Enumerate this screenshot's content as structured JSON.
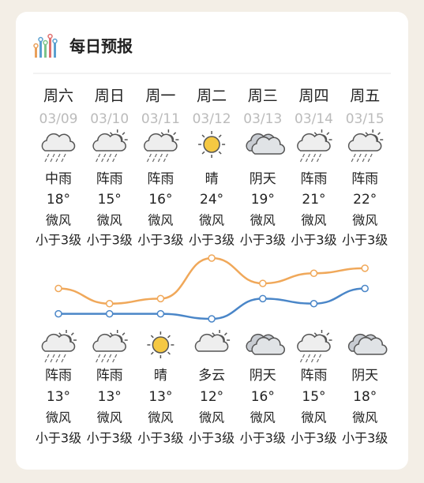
{
  "header": {
    "title": "每日预报"
  },
  "days": [
    {
      "weekday": "周六",
      "date": "03/09",
      "day_weather": "中雨",
      "day_wind": "微风",
      "day_wind_level": "小于3级",
      "night_weather": "阵雨",
      "night_wind": "微风",
      "night_wind_level": "小于3级"
    },
    {
      "weekday": "周日",
      "date": "03/10",
      "day_weather": "阵雨",
      "day_wind": "微风",
      "day_wind_level": "小于3级",
      "night_weather": "阵雨",
      "night_wind": "微风",
      "night_wind_level": "小于3级"
    },
    {
      "weekday": "周一",
      "date": "03/11",
      "day_weather": "阵雨",
      "day_wind": "微风",
      "day_wind_level": "小于3级",
      "night_weather": "晴",
      "night_wind": "微风",
      "night_wind_level": "小于3级"
    },
    {
      "weekday": "周二",
      "date": "03/12",
      "day_weather": "晴",
      "day_wind": "微风",
      "day_wind_level": "小于3级",
      "night_weather": "多云",
      "night_wind": "微风",
      "night_wind_level": "小于3级"
    },
    {
      "weekday": "周三",
      "date": "03/13",
      "day_weather": "阴天",
      "day_wind": "微风",
      "day_wind_level": "小于3级",
      "night_weather": "阴天",
      "night_wind": "微风",
      "night_wind_level": "小于3级"
    },
    {
      "weekday": "周四",
      "date": "03/14",
      "day_weather": "阵雨",
      "day_wind": "微风",
      "day_wind_level": "小于3级",
      "night_weather": "阵雨",
      "night_wind": "微风",
      "night_wind_level": "小于3级"
    },
    {
      "weekday": "周五",
      "date": "03/15",
      "day_weather": "阵雨",
      "day_wind": "微风",
      "day_wind_level": "小于3级",
      "night_weather": "阴天",
      "night_wind": "微风",
      "night_wind_level": "小于3级"
    }
  ],
  "chart_data": {
    "type": "line",
    "series": [
      {
        "color": "#f0a85a",
        "values": [
          18,
          15,
          16,
          24,
          19,
          21,
          22
        ],
        "value_labels": [
          "18°",
          "15°",
          "16°",
          "24°",
          "19°",
          "21°",
          "22°"
        ]
      },
      {
        "color": "#4a86c8",
        "values": [
          13,
          13,
          13,
          12,
          16,
          15,
          18
        ],
        "value_labels": [
          "13°",
          "13°",
          "13°",
          "12°",
          "16°",
          "15°",
          "18°"
        ]
      }
    ]
  }
}
